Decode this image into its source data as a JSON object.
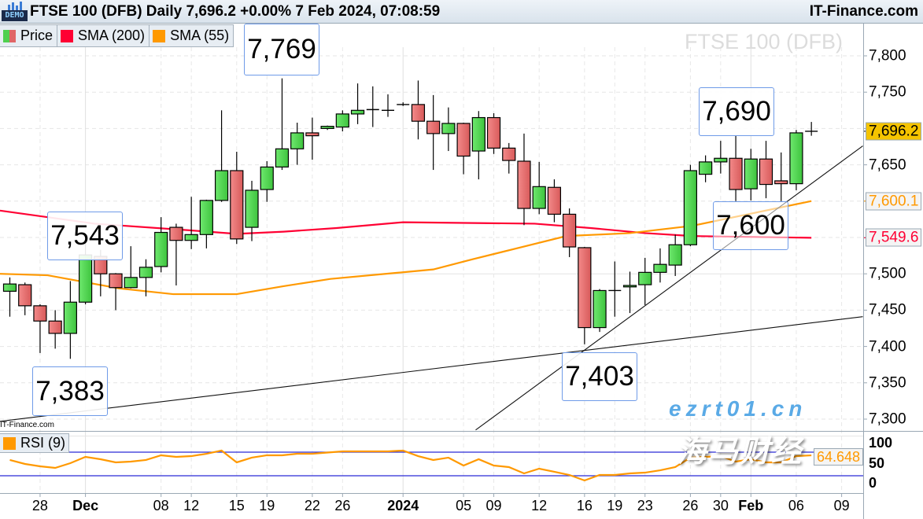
{
  "header": {
    "title": "FTSE 100 (DFB) Daily 7,696.2 +0.00% 7 Feb 2024, 07:08:59",
    "site": "IT-Finance.com",
    "demo_badge": "DEMO"
  },
  "legend": {
    "items": [
      {
        "label": "Price",
        "color": "#4fd04f"
      },
      {
        "label": "SMA (200)",
        "color": "#ff0033"
      },
      {
        "label": "SMA (55)",
        "color": "#ff9900"
      }
    ]
  },
  "watermark_title": "FTSE 100 (DFB)",
  "small_site": "IT-Finance.com",
  "site_watermark": {
    "text": "海马财经",
    "url": "ezrt01.cn"
  },
  "annotations": [
    {
      "label": "7,769"
    },
    {
      "label": "7,543"
    },
    {
      "label": "7,383"
    },
    {
      "label": "7,403"
    },
    {
      "label": "7,690"
    },
    {
      "label": "7,600"
    }
  ],
  "price_tags": [
    {
      "label": "7,696.2",
      "value": 7696.2,
      "bg": "#f5c400",
      "color": "#000000"
    },
    {
      "label": "7,600.1",
      "value": 7600.1,
      "bg": "#f4f4f4",
      "color": "#ff9900"
    },
    {
      "label": "7,549.6",
      "value": 7549.6,
      "bg": "#f4f4f4",
      "color": "#ff0033"
    }
  ],
  "rsi": {
    "legend": "RSI (9)",
    "color": "#ff9900",
    "tag": "64.648",
    "axis_labels": [
      "100",
      "50",
      "0"
    ],
    "levels": [
      70,
      30
    ]
  },
  "chart_data": {
    "type": "candlestick",
    "title": "FTSE 100 (DFB) Daily",
    "y_ticks": [
      {
        "value": 7800,
        "label": "7,800"
      },
      {
        "value": 7750,
        "label": "7,750"
      },
      {
        "value": 7650,
        "label": "7,650"
      },
      {
        "value": 7500,
        "label": "7,500"
      },
      {
        "value": 7450,
        "label": "7,450"
      },
      {
        "value": 7400,
        "label": "7,400"
      },
      {
        "value": 7350,
        "label": "7,350"
      },
      {
        "value": 7300,
        "label": "7,300"
      }
    ],
    "ylim": [
      7290,
      7850
    ],
    "x_ticks": [
      {
        "i": 2,
        "label": "28"
      },
      {
        "i": 5,
        "label": "Dec",
        "bold": true
      },
      {
        "i": 10,
        "label": "08"
      },
      {
        "i": 12,
        "label": "12"
      },
      {
        "i": 15,
        "label": "15"
      },
      {
        "i": 17,
        "label": "19"
      },
      {
        "i": 20,
        "label": "22"
      },
      {
        "i": 22,
        "label": "26"
      },
      {
        "i": 26,
        "label": "2024",
        "bold": true
      },
      {
        "i": 30,
        "label": "05"
      },
      {
        "i": 32,
        "label": "09"
      },
      {
        "i": 35,
        "label": "12"
      },
      {
        "i": 38,
        "label": "16"
      },
      {
        "i": 40,
        "label": "19"
      },
      {
        "i": 42,
        "label": "23"
      },
      {
        "i": 45,
        "label": "26"
      },
      {
        "i": 47,
        "label": "30"
      },
      {
        "i": 49,
        "label": "Feb",
        "bold": true
      },
      {
        "i": 52,
        "label": "06"
      },
      {
        "i": 55,
        "label": "09"
      }
    ],
    "grid": true,
    "candles_ohlc": [
      [
        7476,
        7495,
        7441,
        7486
      ],
      [
        7485,
        7488,
        7443,
        7456
      ],
      [
        7456,
        7458,
        7391,
        7435
      ],
      [
        7435,
        7450,
        7397,
        7418
      ],
      [
        7418,
        7490,
        7383,
        7461
      ],
      [
        7461,
        7543,
        7458,
        7526
      ],
      [
        7524,
        7533,
        7469,
        7500
      ],
      [
        7500,
        7501,
        7450,
        7481
      ],
      [
        7481,
        7538,
        7480,
        7495
      ],
      [
        7495,
        7520,
        7469,
        7509
      ],
      [
        7510,
        7578,
        7502,
        7557
      ],
      [
        7564,
        7569,
        7484,
        7546
      ],
      [
        7546,
        7606,
        7534,
        7554
      ],
      [
        7554,
        7602,
        7535,
        7601
      ],
      [
        7601,
        7725,
        7599,
        7642
      ],
      [
        7642,
        7668,
        7541,
        7548
      ],
      [
        7564,
        7628,
        7545,
        7615
      ],
      [
        7616,
        7655,
        7599,
        7647
      ],
      [
        7647,
        7769,
        7643,
        7672
      ],
      [
        7672,
        7708,
        7650,
        7694
      ],
      [
        7694,
        7715,
        7657,
        7690
      ],
      [
        7700,
        7704,
        7698,
        7703
      ],
      [
        7702,
        7725,
        7696,
        7720
      ],
      [
        7720,
        7762,
        7706,
        7725
      ],
      [
        7726,
        7758,
        7702,
        7726
      ],
      [
        7725,
        7747,
        7716,
        7725
      ],
      [
        7733,
        7736,
        7731,
        7733
      ],
      [
        7733,
        7766,
        7685,
        7710
      ],
      [
        7710,
        7746,
        7643,
        7693
      ],
      [
        7693,
        7729,
        7669,
        7707
      ],
      [
        7707,
        7708,
        7637,
        7662
      ],
      [
        7669,
        7724,
        7630,
        7715
      ],
      [
        7715,
        7721,
        7665,
        7673
      ],
      [
        7673,
        7680,
        7638,
        7656
      ],
      [
        7655,
        7693,
        7567,
        7590
      ],
      [
        7590,
        7654,
        7582,
        7620
      ],
      [
        7619,
        7630,
        7571,
        7582
      ],
      [
        7582,
        7590,
        7523,
        7537
      ],
      [
        7536,
        7537,
        7403,
        7426
      ],
      [
        7426,
        7479,
        7420,
        7477
      ],
      [
        7477,
        7517,
        7441,
        7477
      ],
      [
        7482,
        7503,
        7446,
        7484
      ],
      [
        7485,
        7522,
        7457,
        7502
      ],
      [
        7502,
        7535,
        7488,
        7513
      ],
      [
        7512,
        7554,
        7497,
        7540
      ],
      [
        7540,
        7650,
        7538,
        7642
      ],
      [
        7637,
        7663,
        7626,
        7654
      ],
      [
        7654,
        7683,
        7638,
        7659
      ],
      [
        7659,
        7690,
        7600,
        7616
      ],
      [
        7617,
        7672,
        7601,
        7658
      ],
      [
        7658,
        7683,
        7604,
        7623
      ],
      [
        7628,
        7667,
        7600,
        7624
      ],
      [
        7624,
        7698,
        7615,
        7694
      ],
      [
        7696.2,
        7709,
        7690,
        7696.2
      ]
    ],
    "series": [
      {
        "name": "SMA (200)",
        "color": "#ff0033",
        "points": [
          [
            -0.65,
            7587
          ],
          [
            5.6,
            7569
          ],
          [
            11.8,
            7560
          ],
          [
            15,
            7555
          ],
          [
            18.1,
            7558
          ],
          [
            21.6,
            7563
          ],
          [
            26,
            7571
          ],
          [
            34.7,
            7569
          ],
          [
            38.4,
            7563
          ],
          [
            42,
            7556
          ],
          [
            45.1,
            7552
          ],
          [
            53,
            7549.6
          ]
        ]
      },
      {
        "name": "SMA (55)",
        "color": "#ff9900",
        "points": [
          [
            -0.65,
            7500
          ],
          [
            2.5,
            7498
          ],
          [
            4.6,
            7490
          ],
          [
            7.2,
            7480
          ],
          [
            10.8,
            7472
          ],
          [
            15,
            7472
          ],
          [
            18.1,
            7483
          ],
          [
            21.2,
            7493
          ],
          [
            25.4,
            7501
          ],
          [
            28,
            7506
          ],
          [
            30.6,
            7520
          ],
          [
            33.7,
            7536
          ],
          [
            36.8,
            7552
          ],
          [
            41,
            7556
          ],
          [
            45.1,
            7566
          ],
          [
            53,
            7600.1
          ]
        ]
      }
    ],
    "trendlines": [
      [
        [
          -0.65,
          7297
        ],
        [
          56.4,
          7441
        ]
      ],
      [
        [
          30.8,
          7285
        ],
        [
          56.4,
          7676
        ]
      ]
    ],
    "rsi_values": [
      56.7,
      50,
      46,
      43.3,
      51.3,
      62,
      58,
      52.7,
      54,
      56.7,
      64.7,
      62,
      63.3,
      67.3,
      72.7,
      52.7,
      60.7,
      64.7,
      64.7,
      67.3,
      67.3,
      69.3,
      71.3,
      71.3,
      71.3,
      71.3,
      72.7,
      63.3,
      56.7,
      60.7,
      47.3,
      58,
      47.3,
      44.7,
      34,
      42,
      36.7,
      31.3,
      22,
      31.3,
      31.3,
      34,
      35.3,
      39.3,
      44.7,
      60.7,
      62,
      63.3,
      54,
      58,
      52.7,
      52.7,
      63.3,
      64.6
    ]
  }
}
